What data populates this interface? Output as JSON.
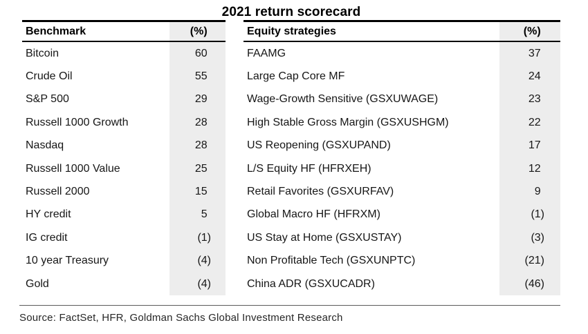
{
  "title": "2021 return scorecard",
  "source_note": "Source: FactSet, HFR, Goldman Sachs Global Investment Research",
  "colors": {
    "value_column_bg": "#ededed",
    "table_border": "#000000",
    "footer_rule": "#595959",
    "text": "#161616"
  },
  "benchmark_table": {
    "header": {
      "label": "Benchmark",
      "value": "(%)"
    },
    "rows": [
      {
        "label": "Bitcoin",
        "value": "60"
      },
      {
        "label": "Crude Oil",
        "value": "55"
      },
      {
        "label": "S&P 500",
        "value": "29"
      },
      {
        "label": "Russell 1000 Growth",
        "value": "28"
      },
      {
        "label": "Nasdaq",
        "value": "28"
      },
      {
        "label": "Russell 1000 Value",
        "value": "25"
      },
      {
        "label": "Russell 2000",
        "value": "15"
      },
      {
        "label": "HY credit",
        "value": "5"
      },
      {
        "label": "IG credit",
        "value": "(1)"
      },
      {
        "label": "10 year Treasury",
        "value": "(4)"
      },
      {
        "label": "Gold",
        "value": "(4)"
      }
    ]
  },
  "equity_table": {
    "header": {
      "label": "Equity strategies",
      "value": "(%)"
    },
    "rows": [
      {
        "label": "FAAMG",
        "value": "37"
      },
      {
        "label": "Large Cap Core MF",
        "value": "24"
      },
      {
        "label": "Wage-Growth Sensitive (GSXUWAGE)",
        "value": "23"
      },
      {
        "label": "High Stable Gross Margin (GSXUSHGM)",
        "value": "22"
      },
      {
        "label": "US Reopening (GSXUPAND)",
        "value": "17"
      },
      {
        "label": "L/S Equity HF (HFRXEH)",
        "value": "12"
      },
      {
        "label": "Retail Favorites (GSXURFAV)",
        "value": "9"
      },
      {
        "label": "Global Macro HF (HFRXM)",
        "value": "(1)"
      },
      {
        "label": "US Stay at Home (GSXUSTAY)",
        "value": "(3)"
      },
      {
        "label": "Non Profitable Tech (GSXUNPTC)",
        "value": "(21)"
      },
      {
        "label": "China ADR (GSXUCADR)",
        "value": "(46)"
      }
    ]
  },
  "chart_data": {
    "type": "table",
    "title": "2021 return scorecard",
    "tables": [
      {
        "name": "Benchmark",
        "columns": [
          "Benchmark",
          "(%)"
        ],
        "categories": [
          "Bitcoin",
          "Crude Oil",
          "S&P 500",
          "Russell 1000 Growth",
          "Nasdaq",
          "Russell 1000 Value",
          "Russell 2000",
          "HY credit",
          "IG credit",
          "10 year Treasury",
          "Gold"
        ],
        "values": [
          60,
          55,
          29,
          28,
          28,
          25,
          15,
          5,
          -1,
          -4,
          -4
        ]
      },
      {
        "name": "Equity strategies",
        "columns": [
          "Equity strategies",
          "(%)"
        ],
        "categories": [
          "FAAMG",
          "Large Cap Core MF",
          "Wage-Growth Sensitive (GSXUWAGE)",
          "High Stable Gross Margin (GSXUSHGM)",
          "US Reopening (GSXUPAND)",
          "L/S Equity HF (HFRXEH)",
          "Retail Favorites (GSXURFAV)",
          "Global Macro HF (HFRXM)",
          "US Stay at Home (GSXUSTAY)",
          "Non Profitable Tech (GSXUNPTC)",
          "China ADR (GSXUCADR)"
        ],
        "values": [
          37,
          24,
          23,
          22,
          17,
          12,
          9,
          -1,
          -3,
          -21,
          -46
        ]
      }
    ]
  }
}
